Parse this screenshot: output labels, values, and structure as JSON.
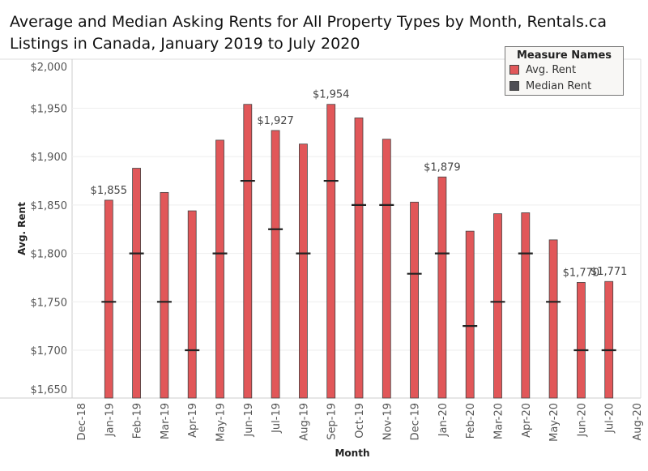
{
  "chart_data": {
    "type": "bar",
    "title": "Average and Median Asking Rents for All Property Types by Month, Rentals.ca Listings in Canada, January 2019 to July 2020",
    "xlabel": "Month",
    "ylabel": "Avg. Rent",
    "ylim": [
      1650,
      2000
    ],
    "yticks": [
      "$1,650",
      "$1,700",
      "$1,750",
      "$1,800",
      "$1,850",
      "$1,900",
      "$1,950",
      "$2,000"
    ],
    "ytick_values": [
      1650,
      1700,
      1750,
      1800,
      1850,
      1900,
      1950,
      2000
    ],
    "xticks": [
      "Dec-18",
      "Jan-19",
      "Feb-19",
      "Mar-19",
      "Apr-19",
      "May-19",
      "Jun-19",
      "Jul-19",
      "Aug-19",
      "Sep-19",
      "Oct-19",
      "Nov-19",
      "Dec-19",
      "Jan-20",
      "Feb-20",
      "Mar-20",
      "Apr-20",
      "May-20",
      "Jun-20",
      "Jul-20",
      "Aug-20"
    ],
    "categories": [
      "Jan-19",
      "Feb-19",
      "Mar-19",
      "Apr-19",
      "May-19",
      "Jun-19",
      "Jul-19",
      "Aug-19",
      "Sep-19",
      "Oct-19",
      "Nov-19",
      "Dec-19",
      "Jan-20",
      "Feb-20",
      "Mar-20",
      "Apr-20",
      "May-20",
      "Jun-20",
      "Jul-20"
    ],
    "grid": true,
    "legend": {
      "title": "Measure Names",
      "placement": "top-right"
    },
    "series": [
      {
        "name": "Avg. Rent",
        "mark": "bar",
        "color": "#e15759",
        "values": [
          1855,
          1888,
          1863,
          1844,
          1917,
          1954,
          1927,
          1913,
          1954,
          1940,
          1918,
          1853,
          1879,
          1823,
          1841,
          1842,
          1814,
          1770,
          1771
        ],
        "labels": {
          "Jan-19": "$1,855",
          "Jul-19": "$1,927",
          "Sep-19": "$1,954",
          "Jan-20": "$1,879",
          "Jun-20": "$1,770",
          "Jul-20": "$1,771"
        }
      },
      {
        "name": "Median Rent",
        "mark": "tick",
        "color": "#4e4e55",
        "values": [
          1750,
          1800,
          1750,
          1700,
          1800,
          1875,
          1825,
          1800,
          1875,
          1850,
          1850,
          1779,
          1800,
          1725,
          1750,
          1800,
          1750,
          1700,
          1700
        ]
      }
    ]
  }
}
